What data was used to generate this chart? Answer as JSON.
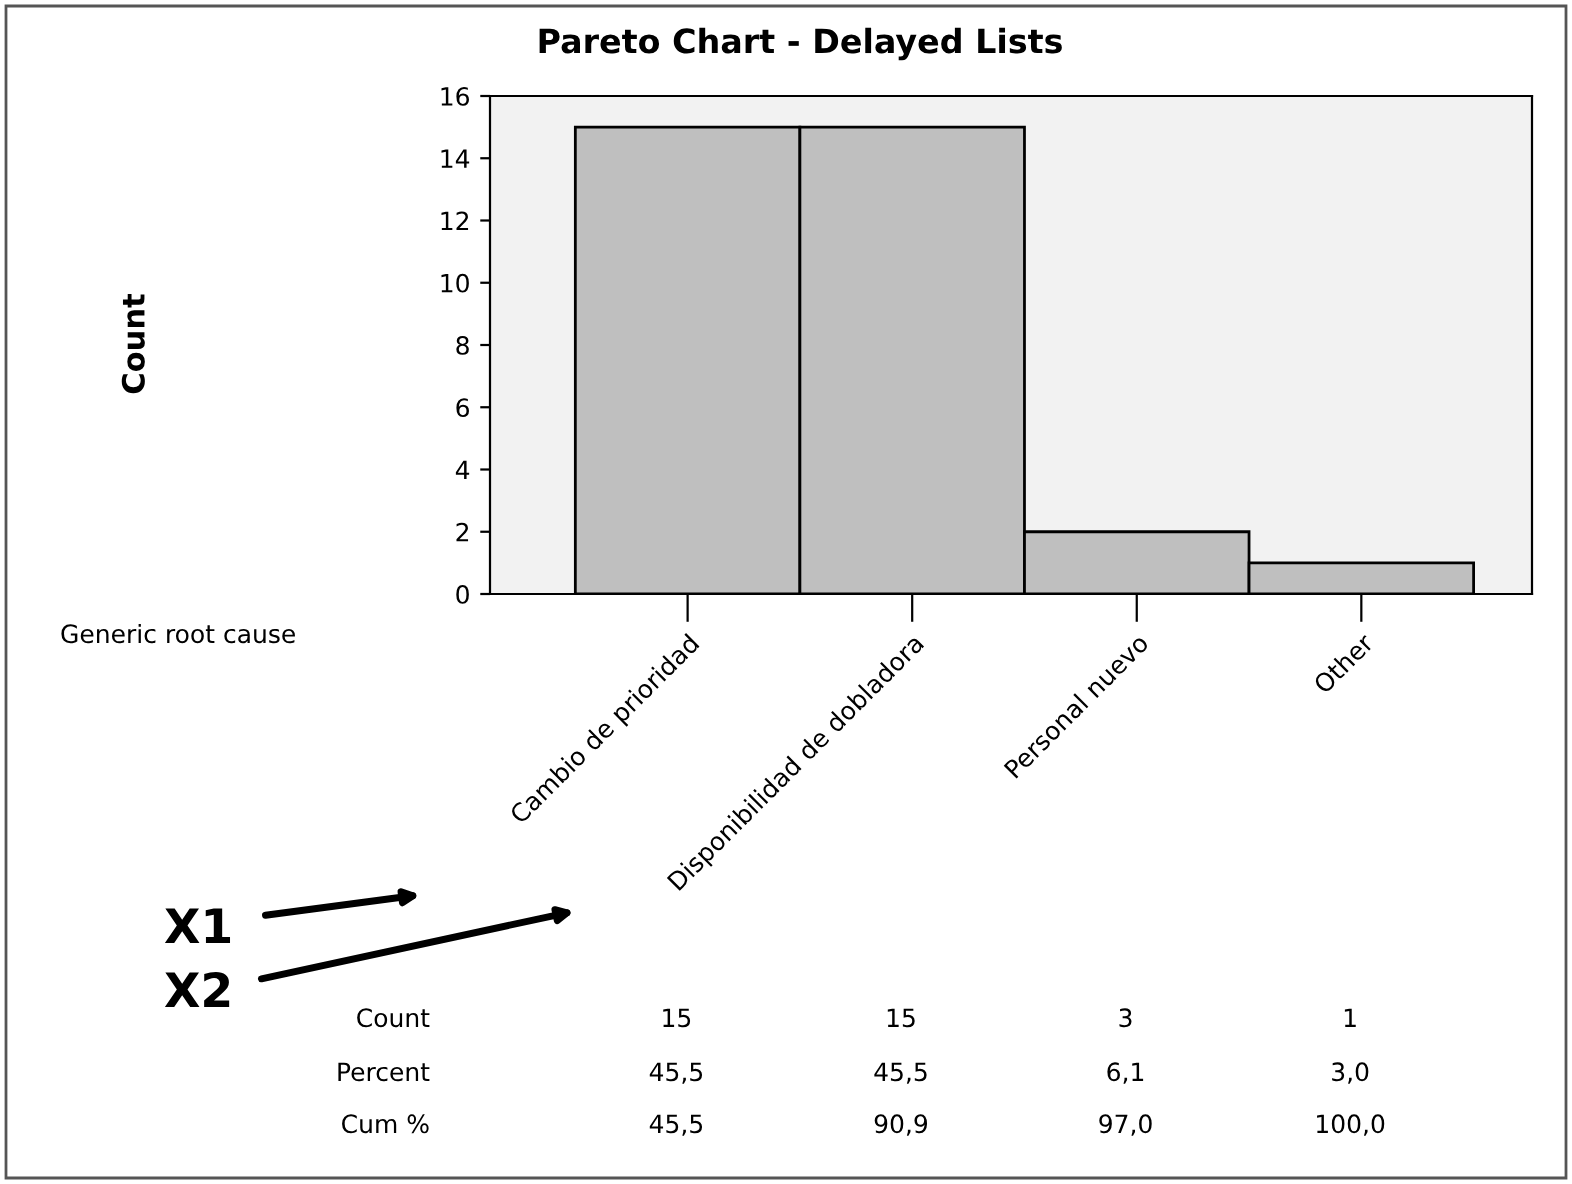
{
  "chart_data": {
    "type": "bar",
    "title": "Pareto Chart - Delayed Lists",
    "categories": [
      "Cambio de prioridad",
      "Disponibilidad de dobladora",
      "Personal nuevo",
      "Other"
    ],
    "values": [
      15,
      15,
      2,
      1
    ],
    "color": "#bfbfbf",
    "ylim": [
      0,
      16
    ],
    "yticks": [
      0,
      2,
      4,
      6,
      8,
      10,
      12,
      14,
      16
    ],
    "grid": false,
    "legend": false,
    "annotations": [
      "X1",
      "X2",
      "Count",
      "15",
      "15",
      "3",
      "1",
      "Percent",
      "45,5",
      "45,5",
      "6,1",
      "3,0",
      "Cum %",
      "45,5",
      "90,9",
      "97,0",
      "100,0",
      "Count",
      "Generic root cause"
    ]
  }
}
